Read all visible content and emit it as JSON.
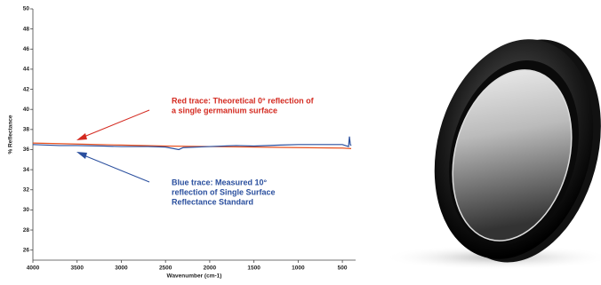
{
  "chart_data": {
    "type": "line",
    "xlabel": "Wavenumber (cm-1)",
    "ylabel": "% Reflectance",
    "xlim": [
      4000,
      350
    ],
    "ylim": [
      25,
      50
    ],
    "xticks": [
      4000,
      3500,
      3000,
      2500,
      2000,
      1500,
      1000,
      500
    ],
    "yticks": [
      26,
      28,
      30,
      32,
      34,
      36,
      38,
      40,
      42,
      44,
      46,
      48,
      50
    ],
    "annotations": [
      {
        "color": "#d42a20",
        "lines": [
          "Red trace: Theoretical 0° reflection of",
          "a single germanium surface"
        ]
      },
      {
        "color": "#2a4f9e",
        "lines": [
          "Blue trace: Measured 10° ",
          "reflection of Single Surface",
          "Reflectance Standard"
        ]
      }
    ],
    "series": [
      {
        "color": "#e8501e",
        "x": [
          4000,
          3500,
          3000,
          2500,
          2000,
          1500,
          1000,
          500,
          400
        ],
        "values": [
          36.65,
          36.55,
          36.45,
          36.35,
          36.3,
          36.25,
          36.2,
          36.15,
          36.1
        ]
      },
      {
        "color": "#2a4f9e",
        "x": [
          4000,
          3700,
          3500,
          3200,
          3000,
          2700,
          2500,
          2350,
          2300,
          2000,
          1700,
          1500,
          1200,
          1000,
          700,
          500,
          430,
          420,
          410,
          400
        ],
        "values": [
          36.5,
          36.4,
          36.4,
          36.35,
          36.3,
          36.3,
          36.25,
          36.0,
          36.2,
          36.3,
          36.4,
          36.35,
          36.45,
          36.5,
          36.5,
          36.5,
          36.3,
          37.3,
          36.5,
          36.4
        ]
      }
    ]
  }
}
